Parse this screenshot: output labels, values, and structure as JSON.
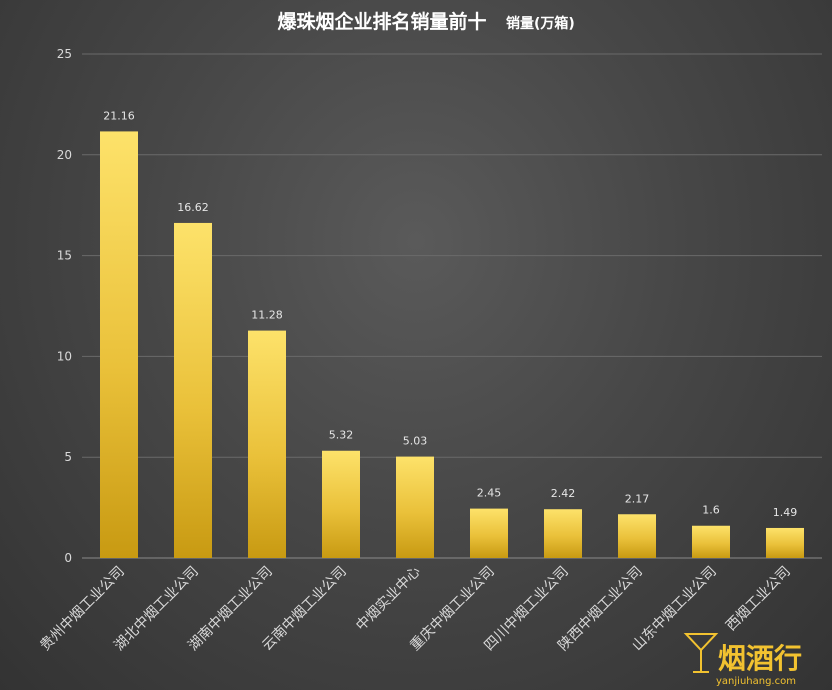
{
  "chart_data": {
    "type": "bar",
    "title": "爆珠烟企业排名销量前十",
    "unit_label": "销量(万箱)",
    "categories": [
      "贵州中烟工业公司",
      "湖北中烟工业公司",
      "湖南中烟工业公司",
      "云南中烟工业公司",
      "中烟实业中心",
      "重庆中烟工业公司",
      "四川中烟工业公司",
      "陕西中烟工业公司",
      "山东中烟工业公司",
      "西烟工业公司"
    ],
    "values": [
      21.16,
      16.62,
      11.28,
      5.32,
      5.03,
      2.45,
      2.42,
      2.17,
      1.6,
      1.49
    ],
    "value_labels": [
      "21.16",
      "16.62",
      "11.28",
      "5.32",
      "5.03",
      "2.45",
      "2.42",
      "2.17",
      "1.6",
      "1.49"
    ],
    "ylim": [
      0,
      25
    ],
    "yticks": [
      0,
      5,
      10,
      15,
      20,
      25
    ],
    "grid": true,
    "legend": "none",
    "bar_color_top": "#fde26a",
    "bar_color_bottom": "#c89a12"
  },
  "watermark": {
    "logo_text": "烟酒行",
    "site_text": "yanjiuhang.com",
    "color": "#f2c230"
  }
}
